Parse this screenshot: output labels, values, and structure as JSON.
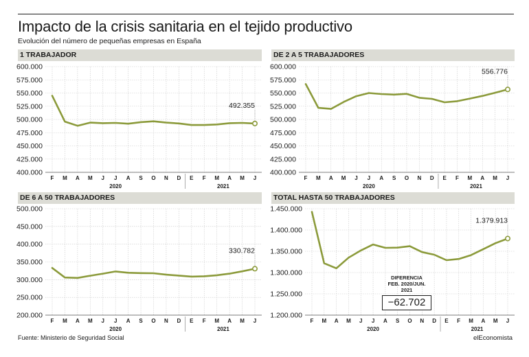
{
  "header": {
    "title": "Impacto de la crisis sanitaria en el tejido productivo",
    "subtitle": "Evolución del número de pequeñas empresas en España"
  },
  "footer": {
    "source": "Fuente: Ministerio de Seguridad Social",
    "brand": "elEconomista"
  },
  "colors": {
    "line": "#8b9a3a",
    "grid": "#c8c8c8",
    "header_band": "#dcdcd5",
    "text": "#1a1a1a"
  },
  "annotation": {
    "title_line1": "DIFERENCIA",
    "title_line2": "FEB. 2020/JUN. 2021",
    "value": "−62.702"
  },
  "chart_data": [
    {
      "type": "line",
      "title": "1 TRABAJADOR",
      "months": [
        "F",
        "M",
        "A",
        "M",
        "J",
        "J",
        "A",
        "S",
        "O",
        "N",
        "D",
        "E",
        "F",
        "M",
        "A",
        "M",
        "J"
      ],
      "years": [
        "2020",
        "2021"
      ],
      "ylim": [
        400000,
        600000
      ],
      "yticks": [
        400000,
        425000,
        450000,
        475000,
        500000,
        525000,
        550000,
        575000,
        600000
      ],
      "ytick_labels": [
        "400.000",
        "425.000",
        "450.000",
        "475.000",
        "500.000",
        "525.000",
        "550.000",
        "575.000",
        "600.000"
      ],
      "series": [
        {
          "values": [
            545000,
            496000,
            488000,
            494000,
            493000,
            493500,
            492000,
            495000,
            496500,
            494000,
            492500,
            489500,
            489500,
            490500,
            493000,
            493500,
            492355
          ]
        }
      ],
      "end_label": "492.355"
    },
    {
      "type": "line",
      "title": "DE 2 A 5 TRABAJADORES",
      "months": [
        "F",
        "M",
        "A",
        "M",
        "J",
        "J",
        "A",
        "S",
        "O",
        "N",
        "D",
        "E",
        "F",
        "M",
        "A",
        "M",
        "J"
      ],
      "years": [
        "2020",
        "2021"
      ],
      "ylim": [
        400000,
        600000
      ],
      "yticks": [
        400000,
        425000,
        450000,
        475000,
        500000,
        525000,
        550000,
        575000,
        600000
      ],
      "ytick_labels": [
        "400.000",
        "425.000",
        "450.000",
        "475.000",
        "500.000",
        "525.000",
        "550.000",
        "575.000",
        "600.000"
      ],
      "series": [
        {
          "values": [
            567000,
            522000,
            520000,
            533000,
            544000,
            550000,
            548000,
            547000,
            548500,
            541000,
            539000,
            532500,
            534500,
            539500,
            544500,
            550500,
            556776
          ]
        }
      ],
      "end_label": "556.776"
    },
    {
      "type": "line",
      "title": "DE 6 A 50 TRABAJADORES",
      "months": [
        "F",
        "M",
        "A",
        "M",
        "J",
        "J",
        "A",
        "S",
        "O",
        "N",
        "D",
        "E",
        "F",
        "M",
        "A",
        "M",
        "J"
      ],
      "years": [
        "2020",
        "2021"
      ],
      "ylim": [
        200000,
        500000
      ],
      "yticks": [
        200000,
        250000,
        300000,
        350000,
        400000,
        450000,
        500000
      ],
      "ytick_labels": [
        "200.000",
        "250.000",
        "300.000",
        "350.000",
        "400.000",
        "450.000",
        "500.000"
      ],
      "series": [
        {
          "values": [
            333000,
            306000,
            305000,
            311000,
            317000,
            323000,
            319500,
            318500,
            318000,
            314000,
            311500,
            308500,
            309500,
            312500,
            317000,
            323500,
            330782
          ]
        }
      ],
      "end_label": "330.782"
    },
    {
      "type": "line",
      "title": "TOTAL HASTA 50 TRABAJADORES",
      "months": [
        "F",
        "M",
        "A",
        "M",
        "J",
        "J",
        "A",
        "S",
        "O",
        "N",
        "D",
        "E",
        "F",
        "M",
        "A",
        "M",
        "J"
      ],
      "years": [
        "2020",
        "2021"
      ],
      "ylim": [
        1200000,
        1450000
      ],
      "yticks": [
        1200000,
        1250000,
        1300000,
        1350000,
        1400000,
        1450000
      ],
      "ytick_labels": [
        "1.200.000",
        "1.250.000",
        "1.300.000",
        "1.350.000",
        "1.400.000",
        "1.450.000"
      ],
      "series": [
        {
          "values": [
            1442615,
            1322000,
            1310000,
            1335000,
            1352000,
            1366000,
            1358000,
            1358500,
            1362000,
            1348000,
            1342000,
            1329000,
            1332000,
            1341000,
            1355000,
            1369000,
            1379913
          ]
        }
      ],
      "end_label": "1.379.913"
    }
  ]
}
